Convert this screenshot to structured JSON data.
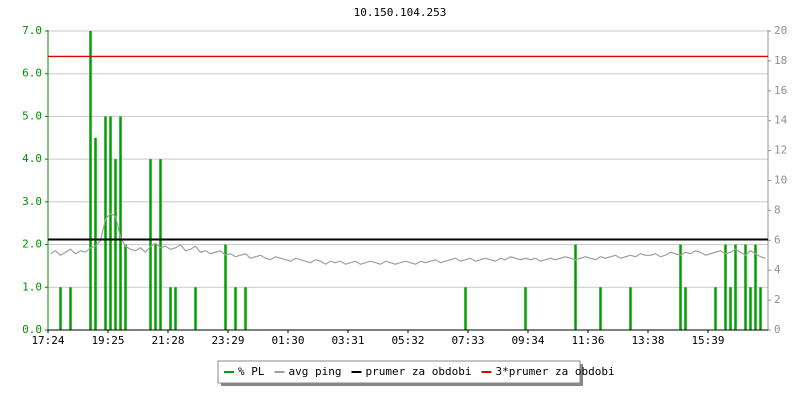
{
  "chart_data": {
    "type": "bar-line",
    "title": "10.150.104.253",
    "categories": [
      "17:24",
      null,
      null,
      null,
      null,
      null,
      null,
      null,
      null,
      null,
      null,
      null,
      "19:25",
      null,
      null,
      null,
      null,
      null,
      null,
      null,
      null,
      null,
      null,
      null,
      "21:28",
      null,
      null,
      null,
      null,
      null,
      null,
      null,
      null,
      null,
      null,
      null,
      "23:29",
      null,
      null,
      null,
      null,
      null,
      null,
      null,
      null,
      null,
      null,
      null,
      "01:30",
      null,
      null,
      null,
      null,
      null,
      null,
      null,
      null,
      null,
      null,
      null,
      "03:31",
      null,
      null,
      null,
      null,
      null,
      null,
      null,
      null,
      null,
      null,
      null,
      "05:32",
      null,
      null,
      null,
      null,
      null,
      null,
      null,
      null,
      null,
      null,
      null,
      "07:33",
      null,
      null,
      null,
      null,
      null,
      null,
      null,
      null,
      null,
      null,
      null,
      "09:34",
      null,
      null,
      null,
      null,
      null,
      null,
      null,
      null,
      null,
      null,
      null,
      "11:36",
      null,
      null,
      null,
      null,
      null,
      null,
      null,
      null,
      null,
      null,
      null,
      "13:38",
      null,
      null,
      null,
      null,
      null,
      null,
      null,
      null,
      null,
      null,
      null,
      "15:39",
      null,
      null,
      null,
      null,
      null,
      null,
      null,
      null,
      null,
      null,
      null
    ],
    "series": [
      {
        "name": "% PL",
        "color": "#00a000",
        "axis": "y",
        "kind": "bar",
        "values": [
          0,
          0,
          1,
          0,
          1,
          0,
          0,
          0,
          7,
          4.5,
          0,
          5,
          5,
          4,
          5,
          2,
          0,
          0,
          0,
          0,
          4,
          2,
          4,
          0,
          1,
          1,
          0,
          0,
          0,
          1,
          0,
          0,
          0,
          0,
          0,
          2,
          0,
          1,
          0,
          1,
          0,
          0,
          0,
          0,
          0,
          0,
          0,
          0,
          0,
          0,
          0,
          0,
          0,
          0,
          0,
          0,
          0,
          0,
          0,
          0,
          0,
          0,
          0,
          0,
          0,
          0,
          0,
          0,
          0,
          0,
          0,
          0,
          0,
          0,
          0,
          0,
          0,
          0,
          0,
          0,
          0,
          0,
          0,
          1,
          0,
          0,
          0,
          0,
          0,
          0,
          0,
          0,
          0,
          0,
          0,
          1,
          0,
          0,
          0,
          0,
          0,
          0,
          0,
          0,
          0,
          2,
          0,
          0,
          0,
          0,
          1,
          0,
          0,
          0,
          0,
          0,
          1,
          0,
          0,
          0,
          0,
          0,
          0,
          0,
          0,
          0,
          2,
          1,
          0,
          0,
          0,
          0,
          0,
          1,
          0,
          2,
          1,
          2,
          0,
          2,
          1,
          2,
          1,
          0
        ]
      },
      {
        "name": "avg ping",
        "color": "#a0a0a0",
        "axis": "y2",
        "kind": "line",
        "values": [
          5.1,
          5.3,
          5.0,
          5.2,
          5.4,
          5.1,
          5.3,
          5.2,
          5.5,
          5.6,
          6.0,
          7.4,
          7.8,
          7.6,
          6.2,
          5.6,
          5.4,
          5.3,
          5.5,
          5.2,
          5.6,
          5.8,
          5.5,
          5.6,
          5.4,
          5.5,
          5.7,
          5.3,
          5.4,
          5.6,
          5.2,
          5.3,
          5.1,
          5.2,
          5.3,
          5.0,
          5.1,
          4.9,
          5.0,
          5.1,
          4.8,
          4.9,
          5.0,
          4.8,
          4.7,
          4.9,
          4.8,
          4.7,
          4.6,
          4.8,
          4.7,
          4.6,
          4.5,
          4.7,
          4.6,
          4.4,
          4.6,
          4.5,
          4.6,
          4.4,
          4.5,
          4.6,
          4.4,
          4.5,
          4.6,
          4.5,
          4.4,
          4.6,
          4.5,
          4.4,
          4.5,
          4.6,
          4.5,
          4.4,
          4.6,
          4.5,
          4.6,
          4.7,
          4.5,
          4.6,
          4.7,
          4.8,
          4.6,
          4.7,
          4.8,
          4.6,
          4.7,
          4.8,
          4.7,
          4.6,
          4.8,
          4.7,
          4.9,
          4.8,
          4.7,
          4.8,
          4.7,
          4.8,
          4.6,
          4.7,
          4.8,
          4.7,
          4.8,
          4.9,
          4.8,
          4.7,
          4.8,
          4.9,
          4.8,
          4.7,
          4.9,
          4.8,
          4.9,
          5.0,
          4.8,
          4.9,
          5.0,
          4.9,
          5.1,
          5.0,
          5.0,
          5.1,
          4.9,
          5.0,
          5.2,
          5.1,
          5.0,
          5.2,
          5.1,
          5.3,
          5.2,
          5.0,
          5.1,
          5.2,
          5.3,
          5.1,
          5.2,
          5.4,
          5.2,
          5.0,
          5.3,
          5.1,
          4.9,
          4.8
        ]
      }
    ],
    "reference_lines": [
      {
        "name": "prumer za obdobi",
        "color": "#000000",
        "value": 6.05,
        "axis": "y2"
      },
      {
        "name": "3*prumer za obdobi",
        "color": "#e00000",
        "value": 18.3,
        "axis": "y2"
      }
    ],
    "ylim": [
      0,
      7
    ],
    "yticks": [
      {
        "value": 0,
        "label": "0.0"
      },
      {
        "value": 1,
        "label": "1.0"
      },
      {
        "value": 2,
        "label": "2.0"
      },
      {
        "value": 3,
        "label": "3.0"
      },
      {
        "value": 4,
        "label": "4.0"
      },
      {
        "value": 5,
        "label": "5.0"
      },
      {
        "value": 6,
        "label": "6.0"
      },
      {
        "value": 7,
        "label": "7.0"
      }
    ],
    "y2lim": [
      0,
      20
    ],
    "y2ticks": [
      0,
      2,
      4,
      6,
      8,
      10,
      12,
      14,
      16,
      18,
      20
    ],
    "grid": true
  }
}
